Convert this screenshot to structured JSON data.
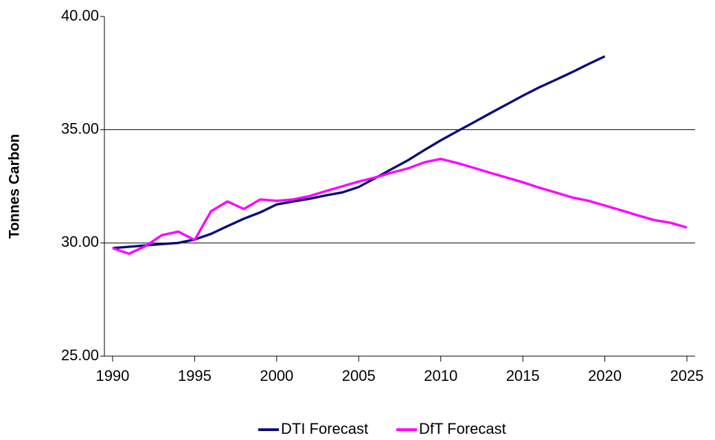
{
  "chart_data": {
    "type": "line",
    "y_label": "Tonnes Carbon",
    "x": [
      1990,
      1991,
      1992,
      1993,
      1994,
      1995,
      1996,
      1997,
      1998,
      1999,
      2000,
      2001,
      2002,
      2003,
      2004,
      2005,
      2006,
      2007,
      2008,
      2009,
      2010,
      2011,
      2012,
      2013,
      2014,
      2015,
      2016,
      2017,
      2018,
      2019,
      2020,
      2021,
      2022,
      2023,
      2024,
      2025
    ],
    "series": [
      {
        "name": "DTI Forecast",
        "color": "#0c0c7a",
        "values": [
          29.77,
          29.83,
          29.89,
          29.95,
          30.0,
          30.15,
          30.4,
          30.74,
          31.07,
          31.35,
          31.7,
          31.83,
          31.95,
          32.1,
          32.23,
          32.47,
          32.86,
          33.26,
          33.65,
          34.1,
          34.53,
          34.93,
          35.32,
          35.72,
          36.11,
          36.5,
          36.87,
          37.2,
          37.54,
          37.9,
          38.24,
          null,
          null,
          null,
          null,
          null
        ]
      },
      {
        "name": "DfT Forecast",
        "color": "#ff00ff",
        "values": [
          29.77,
          29.52,
          29.86,
          30.34,
          30.5,
          30.13,
          31.4,
          31.83,
          31.5,
          31.92,
          31.86,
          31.92,
          32.07,
          32.29,
          32.5,
          32.71,
          32.89,
          33.1,
          33.29,
          33.56,
          33.71,
          33.53,
          33.32,
          33.1,
          32.89,
          32.68,
          32.44,
          32.23,
          32.01,
          31.86,
          31.65,
          31.44,
          31.22,
          31.01,
          30.89,
          30.68
        ]
      }
    ],
    "xlim": [
      1989.5,
      2025.5
    ],
    "xticks": [
      1990,
      1995,
      2000,
      2005,
      2010,
      2015,
      2020,
      2025
    ],
    "ylim": [
      25,
      40
    ],
    "yticks": [
      {
        "value": 25,
        "label": "25.00"
      },
      {
        "value": 30,
        "label": "30.00"
      },
      {
        "value": 35,
        "label": "35.00"
      },
      {
        "value": 40,
        "label": "40.00"
      }
    ],
    "grid": true,
    "legend": "bottom"
  }
}
